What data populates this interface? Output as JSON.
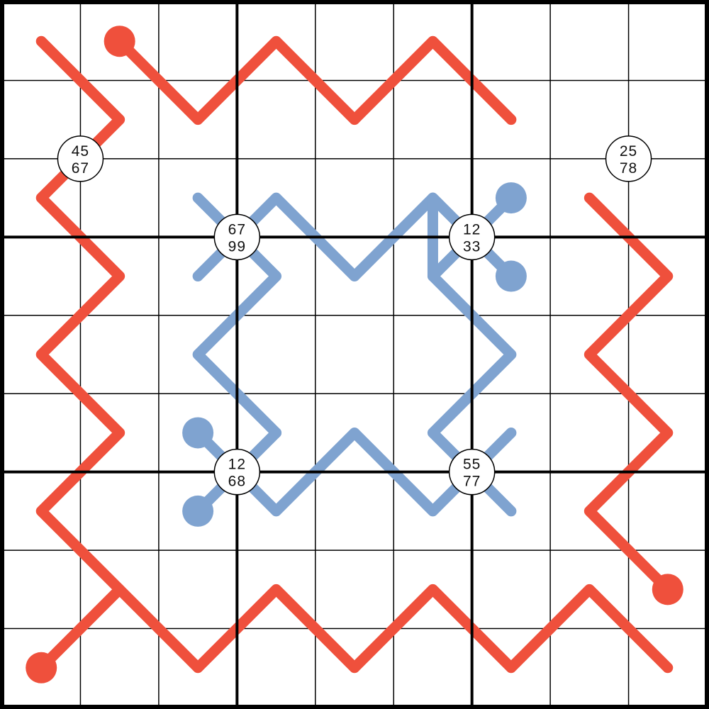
{
  "puzzle": {
    "grid_size": 9,
    "box_size": 3,
    "colors": {
      "background": "#ffffff",
      "grid_line": "#000000",
      "red_line": "#ef503c",
      "blue_line": "#7fa3d0",
      "clue_fill": "#ffffff",
      "clue_border": "#000000"
    },
    "lines": [
      {
        "name": "red-line-top",
        "color": "red",
        "bulb": [
          0,
          1
        ],
        "cells": [
          [
            0,
            1
          ],
          [
            1,
            2
          ],
          [
            0,
            3
          ],
          [
            1,
            4
          ],
          [
            0,
            5
          ],
          [
            1,
            6
          ]
        ]
      },
      {
        "name": "red-line-left-outer",
        "color": "red",
        "bulb": [
          8,
          0
        ],
        "cells": [
          [
            8,
            0
          ],
          [
            7,
            1
          ],
          [
            8,
            2
          ],
          [
            7,
            3
          ],
          [
            8,
            4
          ],
          [
            7,
            5
          ],
          [
            8,
            6
          ],
          [
            7,
            7
          ],
          [
            8,
            8
          ]
        ]
      },
      {
        "name": "red-line-left-inner",
        "color": "red",
        "bulb": null,
        "cells": [
          [
            0,
            0
          ],
          [
            1,
            1
          ],
          [
            2,
            0
          ],
          [
            3,
            1
          ],
          [
            4,
            0
          ],
          [
            5,
            1
          ],
          [
            6,
            0
          ],
          [
            7,
            1
          ]
        ]
      },
      {
        "name": "red-line-right",
        "color": "red",
        "bulb": [
          7,
          8
        ],
        "cells": [
          [
            2,
            7
          ],
          [
            3,
            8
          ],
          [
            4,
            7
          ],
          [
            5,
            8
          ],
          [
            6,
            7
          ],
          [
            7,
            8
          ]
        ]
      },
      {
        "name": "blue-line-top-left",
        "color": "blue",
        "bulb": null,
        "cells": [
          [
            2,
            2
          ],
          [
            3,
            3
          ],
          [
            4,
            2
          ],
          [
            5,
            3
          ]
        ]
      },
      {
        "name": "blue-line-top-middle",
        "color": "blue",
        "bulb": null,
        "cells": [
          [
            3,
            2
          ],
          [
            2,
            3
          ],
          [
            3,
            4
          ],
          [
            2,
            5
          ],
          [
            3,
            6
          ]
        ]
      },
      {
        "name": "blue-line-top-right",
        "color": "blue",
        "bulb": [
          2,
          6
        ],
        "cells": [
          [
            2,
            6
          ],
          [
            3,
            5
          ]
        ]
      },
      {
        "name": "blue-line-right",
        "color": "blue",
        "bulb": [
          3,
          6
        ],
        "cells": [
          [
            3,
            6
          ],
          [
            2,
            5
          ],
          [
            3,
            5
          ],
          [
            4,
            6
          ],
          [
            5,
            5
          ],
          [
            6,
            6
          ]
        ]
      },
      {
        "name": "blue-line-bottom-left",
        "color": "blue",
        "bulb": [
          5,
          2
        ],
        "cells": [
          [
            5,
            2
          ],
          [
            6,
            3
          ],
          [
            5,
            4
          ],
          [
            6,
            5
          ],
          [
            5,
            6
          ]
        ]
      },
      {
        "name": "blue-line-bottom-left-stub",
        "color": "blue",
        "bulb": [
          6,
          2
        ],
        "cells": [
          [
            6,
            2
          ],
          [
            5,
            3
          ]
        ]
      }
    ],
    "clues": [
      {
        "name": "clue-r1c0",
        "row": 1,
        "col": 0,
        "top": "45",
        "bottom": "67"
      },
      {
        "name": "clue-r1c7",
        "row": 1,
        "col": 7,
        "top": "25",
        "bottom": "78"
      },
      {
        "name": "clue-r2c2",
        "row": 2,
        "col": 2,
        "top": "67",
        "bottom": "99"
      },
      {
        "name": "clue-r2c5",
        "row": 2,
        "col": 5,
        "top": "12",
        "bottom": "33"
      },
      {
        "name": "clue-r5c2",
        "row": 5,
        "col": 2,
        "top": "12",
        "bottom": "68"
      },
      {
        "name": "clue-r5c5",
        "row": 5,
        "col": 5,
        "top": "55",
        "bottom": "77"
      }
    ]
  }
}
